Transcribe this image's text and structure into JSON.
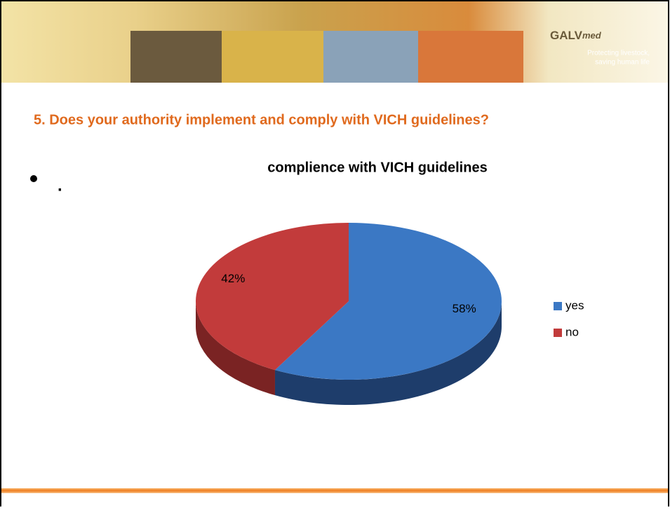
{
  "header": {
    "logo_main": "GALV",
    "logo_sub": "med",
    "tagline_1": "Protecting livestock,",
    "tagline_2": "saving human life"
  },
  "slide_title": "5. Does your authority implement and comply with VICH guidelines?",
  "bullet": ".",
  "chart_data": {
    "type": "pie",
    "title": "complience with VICH guidelines",
    "categories": [
      "yes",
      "no"
    ],
    "values": [
      58,
      42
    ],
    "value_labels": [
      "58%",
      "42%"
    ],
    "colors": [
      "#3b78c4",
      "#c23b3b"
    ],
    "side_colors": [
      "#1e3d6b",
      "#7a2323"
    ],
    "legend": "right"
  }
}
